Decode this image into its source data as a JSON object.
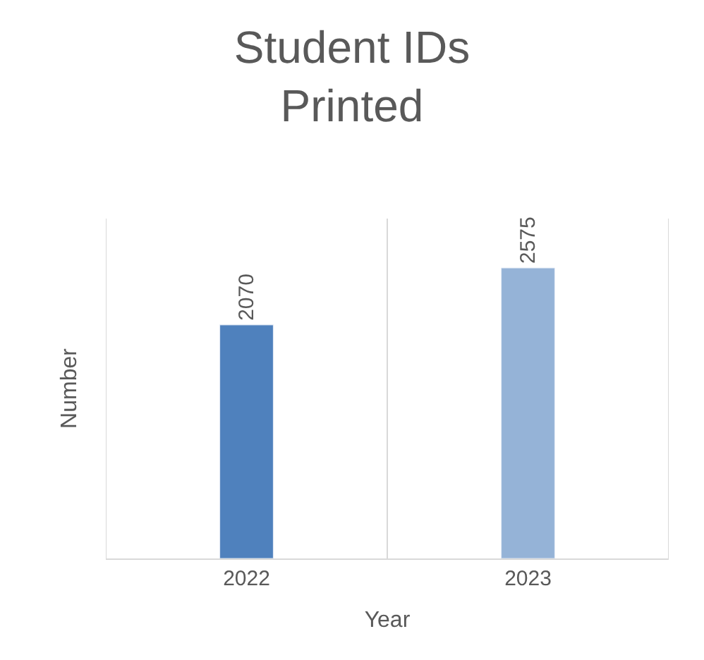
{
  "chart_data": {
    "type": "bar",
    "title": "Student IDs Printed",
    "xlabel": "Year",
    "ylabel": "Number",
    "categories": [
      "2022",
      "2023"
    ],
    "values": [
      2070,
      2575
    ],
    "colors": [
      "#4f81bd",
      "#95b3d7"
    ],
    "data_labels": true,
    "grid": "x",
    "tick_labels": "x"
  }
}
